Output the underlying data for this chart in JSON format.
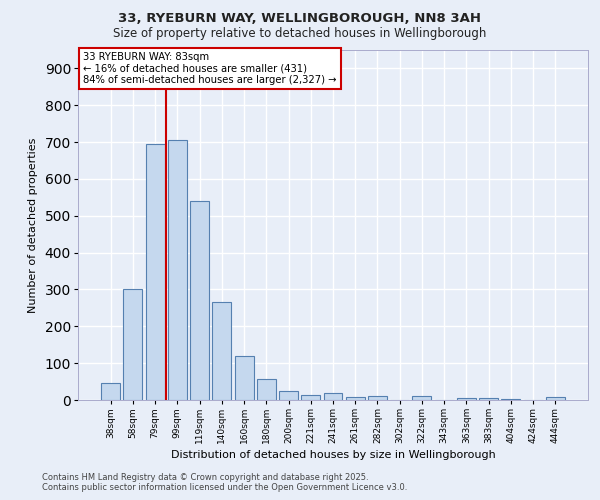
{
  "title_line1": "33, RYEBURN WAY, WELLINGBOROUGH, NN8 3AH",
  "title_line2": "Size of property relative to detached houses in Wellingborough",
  "xlabel": "Distribution of detached houses by size in Wellingborough",
  "ylabel": "Number of detached properties",
  "footer_line1": "Contains HM Land Registry data © Crown copyright and database right 2025.",
  "footer_line2": "Contains public sector information licensed under the Open Government Licence v3.0.",
  "categories": [
    "38sqm",
    "58sqm",
    "79sqm",
    "99sqm",
    "119sqm",
    "140sqm",
    "160sqm",
    "180sqm",
    "200sqm",
    "221sqm",
    "241sqm",
    "261sqm",
    "282sqm",
    "302sqm",
    "322sqm",
    "343sqm",
    "363sqm",
    "383sqm",
    "404sqm",
    "424sqm",
    "444sqm"
  ],
  "values": [
    45,
    300,
    695,
    705,
    540,
    265,
    120,
    57,
    25,
    13,
    18,
    8,
    10,
    0,
    10,
    0,
    5,
    5,
    2,
    0,
    8
  ],
  "bar_color": "#c5d8ee",
  "bar_edge_color": "#5580b0",
  "background_color": "#e8eef8",
  "grid_color": "#ffffff",
  "annotation_box_text": "33 RYEBURN WAY: 83sqm\n← 16% of detached houses are smaller (431)\n84% of semi-detached houses are larger (2,327) →",
  "red_line_x": 2.5,
  "red_line_color": "#cc0000",
  "ylim": [
    0,
    950
  ],
  "yticks": [
    0,
    100,
    200,
    300,
    400,
    500,
    600,
    700,
    800,
    900
  ]
}
